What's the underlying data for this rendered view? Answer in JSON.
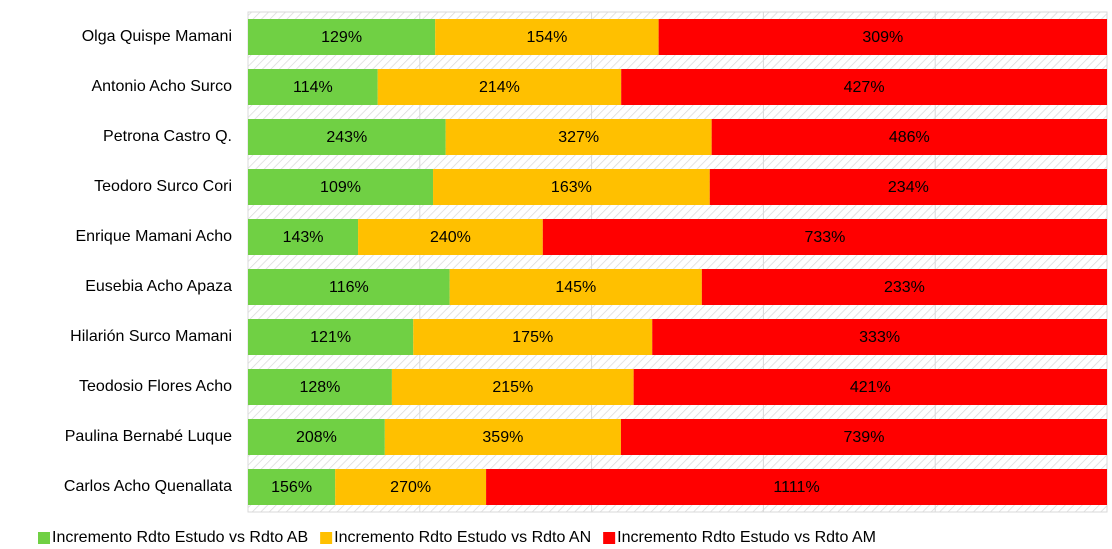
{
  "chart_data": {
    "type": "bar",
    "orientation": "horizontal",
    "stacking": "percent",
    "categories": [
      "Olga Quispe Mamani",
      "Antonio Acho Surco",
      "Petrona Castro Q.",
      "Teodoro Surco Cori",
      "Enrique Mamani Acho",
      "Eusebia Acho Apaza",
      "Hilarión Surco Mamani",
      "Teodosio Flores Acho",
      "Paulina Bernabé Luque",
      "Carlos Acho Quenallata"
    ],
    "series": [
      {
        "name": "Incremento Rdto Estudo vs Rdto AB",
        "color": "#70d044",
        "values": [
          129,
          114,
          243,
          109,
          143,
          116,
          121,
          128,
          208,
          156
        ],
        "value_labels": [
          "129%",
          "114%",
          "243%",
          "109%",
          "143%",
          "116%",
          "121%",
          "128%",
          "208%",
          "156%"
        ]
      },
      {
        "name": "Incremento Rdto Estudo vs Rdto AN",
        "color": "#ffc000",
        "values": [
          154,
          214,
          327,
          163,
          240,
          145,
          175,
          215,
          359,
          270
        ],
        "value_labels": [
          "154%",
          "214%",
          "327%",
          "163%",
          "240%",
          "145%",
          "175%",
          "215%",
          "359%",
          "270%"
        ]
      },
      {
        "name": "Incremento Rdto Estudo vs Rdto AM",
        "color": "#ff0000",
        "values": [
          309,
          427,
          486,
          234,
          733,
          233,
          333,
          421,
          739,
          1111
        ],
        "value_labels": [
          "309%",
          "427%",
          "486%",
          "234%",
          "733%",
          "233%",
          "333%",
          "421%",
          "739%",
          "1111%"
        ]
      }
    ],
    "legend": "bottom"
  }
}
